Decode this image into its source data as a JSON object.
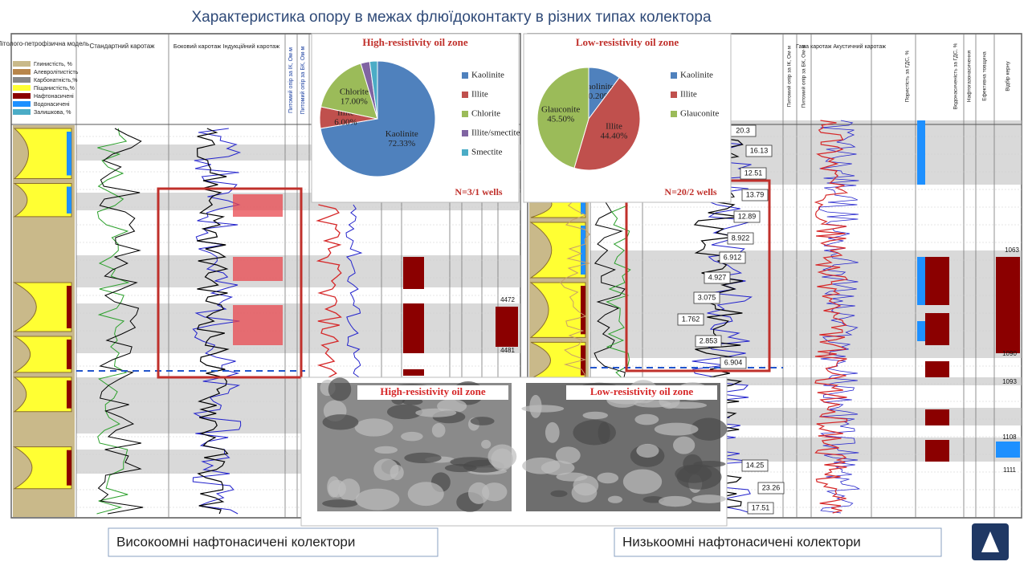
{
  "title": "Характеристика опору в межах флюїдоконтакту в різних типах колектора",
  "chart_data": [
    {
      "type": "pie",
      "title": "High-resistivity oil zone",
      "categories": [
        "Kaolinite",
        "Illite",
        "Chlorite",
        "Illite/smectite",
        "Smectite"
      ],
      "values": [
        72.33,
        6.0,
        17.0,
        2.5,
        2.17
      ],
      "value_labels": [
        "72.33%",
        "6.00%",
        "17.00%",
        null,
        null
      ],
      "colors": [
        "#4f81bd",
        "#c0504d",
        "#9bbb59",
        "#8064a2",
        "#4bacc6"
      ],
      "annotation": "N=3/1 wells"
    },
    {
      "type": "pie",
      "title": "Low-resistivity oil zone",
      "categories": [
        "Kaolinite",
        "Illite",
        "Glauconite"
      ],
      "values": [
        10.2,
        44.4,
        45.5
      ],
      "value_labels": [
        "10.20%",
        "44.40%",
        "45.50%"
      ],
      "colors": [
        "#4f81bd",
        "#c0504d",
        "#9bbb59"
      ],
      "annotation": "N=20/2 wells"
    }
  ],
  "sem_images": [
    "High-resistivity oil zone",
    "Low-resistivity oil zone"
  ],
  "captions": [
    "Високоомні нафтонасичені колектори",
    "Низькоомні нафтонасичені колектори"
  ],
  "logs": {
    "left_headers": [
      "Літолого-петрофізична модель",
      "Стандартний каротаж",
      "Боковий каротаж Індукційний каротаж",
      "Питомий опір за ІК, Ом·м",
      "Питомий опір за БК, Ом·м"
    ],
    "legend": [
      "Глинистість, %",
      "Алевролітистість",
      "Карбонатність,%",
      "Піщанистість,%",
      "Нафтонасичені",
      "Водонасичені",
      "Залишкова, %"
    ],
    "right_headers": [
      "Питомий опір за ІК, Ом·м",
      "Питомий опір за БК, Ом·м",
      "Гама каротаж Акустичний каротаж",
      "Пористість за ГДС, %",
      "Водонасиченість за ГДС, %",
      "Нафтогазонасичення",
      "Ефективна товщина",
      "Відбір керну"
    ],
    "annotations": [
      "20.3",
      "16.13",
      "12.51",
      "13.79",
      "12.89",
      "8.922",
      "6.912",
      "4.927",
      "3.075",
      "1.762",
      "2.853",
      "6.904",
      "14.25",
      "23.26",
      "17.51"
    ],
    "depths": [
      "4472",
      "4481",
      "1063",
      "1090",
      "1093",
      "1108",
      "1111"
    ]
  }
}
